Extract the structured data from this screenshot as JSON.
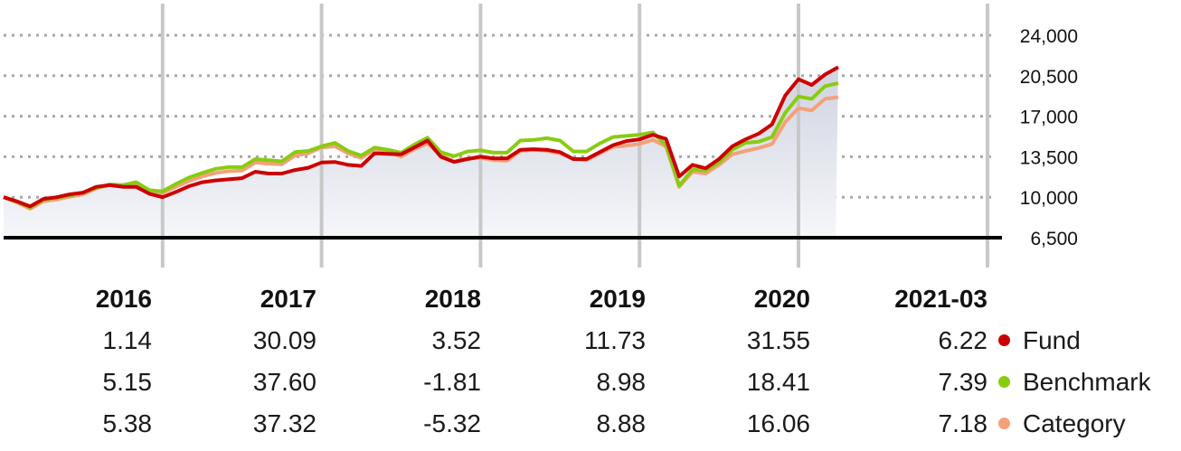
{
  "chart_data": {
    "type": "line",
    "title": "",
    "xlabel": "",
    "ylabel": "",
    "ylim": [
      6500,
      24000
    ],
    "y_ticks": [
      "24,000",
      "20,500",
      "17,000",
      "13,500",
      "10,000",
      "6,500"
    ],
    "y_tick_values": [
      24000,
      20500,
      17000,
      13500,
      10000,
      6500
    ],
    "y_axis_position": "right",
    "grid": "horizontal dotted",
    "x_start": "2016-01",
    "x_end": "2021-03",
    "year_labels": [
      "2016",
      "2017",
      "2018",
      "2019",
      "2020"
    ],
    "area_under_series": "Fund",
    "series": [
      {
        "name": "Fund",
        "color": "#cc0000",
        "values": [
          10000,
          9650,
          9200,
          9850,
          10000,
          10250,
          10400,
          10900,
          11050,
          10900,
          10900,
          10300,
          10000,
          10450,
          10950,
          11300,
          11450,
          11550,
          11650,
          12200,
          12050,
          12050,
          12350,
          12550,
          13000,
          13050,
          12800,
          12700,
          13800,
          13750,
          13700,
          14300,
          14900,
          13500,
          13050,
          13300,
          13500,
          13350,
          13350,
          14100,
          14150,
          14100,
          13900,
          13300,
          13300,
          13900,
          14500,
          14850,
          15000,
          15400,
          15050,
          11800,
          12800,
          12500,
          13300,
          14400,
          15000,
          15500,
          16300,
          18800,
          20200,
          19700,
          20600,
          21250
        ]
      },
      {
        "name": "Benchmark",
        "color": "#88cc11",
        "values": [
          10000,
          9600,
          9100,
          9800,
          9950,
          10150,
          10400,
          10800,
          11100,
          11050,
          11300,
          10600,
          10500,
          11150,
          11700,
          12100,
          12450,
          12600,
          12600,
          13300,
          13200,
          13100,
          13900,
          14000,
          14400,
          14700,
          14000,
          13600,
          14300,
          14100,
          13850,
          14550,
          15150,
          13900,
          13550,
          13950,
          14050,
          13850,
          13850,
          14900,
          14950,
          15100,
          14900,
          13950,
          13950,
          14650,
          15200,
          15300,
          15400,
          15600,
          14500,
          11000,
          12400,
          12300,
          13000,
          14100,
          14700,
          14800,
          15200,
          17300,
          18700,
          18500,
          19600,
          19850
        ]
      },
      {
        "name": "Category",
        "color": "#f5a07a",
        "values": [
          10000,
          9550,
          9000,
          9650,
          9800,
          10050,
          10250,
          10750,
          11050,
          10950,
          11100,
          10450,
          10350,
          10900,
          11400,
          11800,
          12100,
          12250,
          12300,
          13000,
          12900,
          12850,
          13600,
          13800,
          14300,
          14400,
          13800,
          13400,
          14150,
          13950,
          13500,
          14150,
          14650,
          13600,
          13100,
          13350,
          13400,
          13200,
          13150,
          14000,
          14100,
          14000,
          13800,
          13300,
          13200,
          13800,
          14350,
          14450,
          14600,
          14950,
          14400,
          10900,
          12200,
          12050,
          12800,
          13700,
          14000,
          14250,
          14600,
          16500,
          17700,
          17500,
          18500,
          18650
        ]
      }
    ]
  },
  "returns_table": {
    "headers": [
      "2016",
      "2017",
      "2018",
      "2019",
      "2020",
      "2021-03"
    ],
    "rows": [
      {
        "name": "Fund",
        "color": "#cc0000",
        "values": [
          "1.14",
          "30.09",
          "3.52",
          "11.73",
          "31.55",
          "6.22"
        ]
      },
      {
        "name": "Benchmark",
        "color": "#88cc11",
        "values": [
          "5.15",
          "37.60",
          "-1.81",
          "8.98",
          "18.41",
          "7.39"
        ]
      },
      {
        "name": "Category",
        "color": "#f5a07a",
        "values": [
          "5.38",
          "37.32",
          "-5.32",
          "8.88",
          "16.06",
          "7.18"
        ]
      }
    ]
  }
}
